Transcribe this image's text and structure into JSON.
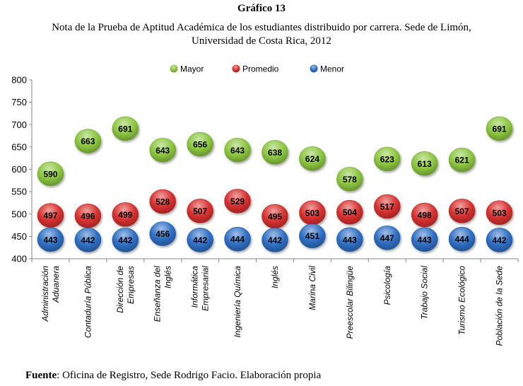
{
  "header": {
    "number": "Gráfico 13",
    "subtitle_line1": "Nota de la Prueba de Aptitud Académica de los estudiantes distribuido por carrera. Sede de Limón,",
    "subtitle_line2": "Universidad de Costa Rica, 2012"
  },
  "footer": {
    "source_label": "Fuente",
    "source_text": ": Oficina de Registro, Sede Rodrigo Facio. Elaboración propia"
  },
  "colors": {
    "Mayor": "#8cc63f",
    "Promedio": "#d7312f",
    "Menor": "#2f6fc4"
  },
  "chart_data": {
    "type": "scatter",
    "legend_position": "top",
    "grid": false,
    "ylim": [
      400,
      800
    ],
    "yticks": [
      400,
      450,
      500,
      550,
      600,
      650,
      700,
      750,
      800
    ],
    "categories": [
      [
        "Administración",
        "Aduanera"
      ],
      [
        "Contaduría Pública"
      ],
      [
        "Dirección de",
        "Empresas"
      ],
      [
        "Enseñanza del",
        "Inglés"
      ],
      [
        "Informática",
        "Empresarial"
      ],
      [
        "Ingeniería Química"
      ],
      [
        "Inglés"
      ],
      [
        "Marina Civil"
      ],
      [
        "Preescolar Bilingüe"
      ],
      [
        "Psicología"
      ],
      [
        "Trabajo Social"
      ],
      [
        "Turismo Ecológico"
      ],
      [
        "Población de la Sede"
      ]
    ],
    "series": [
      {
        "name": "Mayor",
        "values": [
          590,
          663,
          691,
          643,
          656,
          643,
          638,
          624,
          578,
          623,
          613,
          621,
          691
        ]
      },
      {
        "name": "Promedio",
        "values": [
          497,
          496,
          499,
          528,
          507,
          529,
          495,
          503,
          504,
          517,
          498,
          507,
          503
        ]
      },
      {
        "name": "Menor",
        "values": [
          443,
          442,
          442,
          456,
          442,
          444,
          442,
          451,
          443,
          447,
          443,
          444,
          442
        ]
      }
    ]
  }
}
